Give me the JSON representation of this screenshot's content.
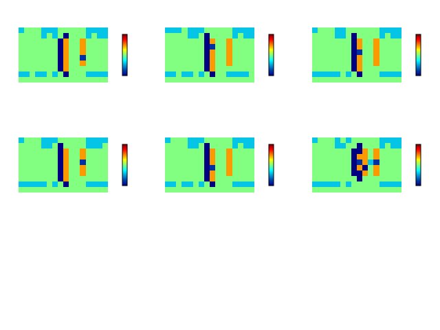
{
  "chart_data": [
    {
      "type": "heatmap",
      "color": "Jet",
      "zlim": [
        -1,
        1
      ],
      "tick_labels": false,
      "z": [
        [
          -0.4,
          0,
          0,
          0,
          -0.4,
          -0.4,
          -0.4,
          0,
          0,
          0,
          0,
          0,
          -0.4,
          -0.4,
          -0.4,
          -0.4
        ],
        [
          0,
          0,
          0,
          0,
          -0.4,
          0,
          -0.4,
          0,
          -1,
          0,
          0,
          0,
          -0.4,
          0,
          -0.4,
          -0.4
        ],
        [
          0,
          0,
          0,
          0,
          0,
          0,
          0,
          -1,
          0.45,
          0,
          0,
          0.45,
          0,
          0,
          0,
          0
        ],
        [
          0,
          0,
          0,
          0,
          0,
          0,
          0,
          -1,
          0.45,
          0,
          0,
          0.45,
          0,
          0,
          0,
          0
        ],
        [
          0,
          0,
          0,
          0,
          0,
          0,
          0,
          -1,
          0.45,
          0,
          0,
          0.45,
          0,
          0,
          0,
          0
        ],
        [
          0,
          0,
          0,
          0,
          0,
          0,
          0,
          -1,
          0.45,
          0,
          0,
          -0.8,
          0,
          0,
          0,
          0
        ],
        [
          0,
          0,
          0,
          0,
          0,
          0,
          0,
          -1,
          0.45,
          0,
          0,
          0.45,
          0,
          0,
          0,
          0
        ],
        [
          0,
          0,
          0,
          0,
          0,
          0,
          0,
          -1,
          0.45,
          0,
          0,
          0,
          0,
          0,
          0,
          0
        ],
        [
          -0.4,
          -0.4,
          0,
          -0.4,
          -0.4,
          0,
          -0.4,
          0,
          -1,
          0,
          0,
          0,
          -0.4,
          -0.4,
          -0.4,
          -0.4
        ],
        [
          0,
          0,
          0,
          0,
          0,
          0,
          0,
          0,
          0,
          0,
          0,
          0,
          0,
          0,
          0,
          0
        ]
      ]
    },
    {
      "type": "heatmap",
      "color": "Jet",
      "zlim": [
        -1,
        1
      ],
      "tick_labels": false,
      "z": [
        [
          -0.4,
          -0.4,
          -0.4,
          0,
          -0.4,
          -0.4,
          -0.4,
          0,
          0,
          0,
          0,
          0,
          -0.4,
          -0.4,
          -0.4,
          -0.4
        ],
        [
          0,
          0,
          0,
          0,
          -0.4,
          -0.4,
          0,
          -1,
          0,
          0,
          0,
          0,
          -0.4,
          0,
          -0.4,
          -0.4
        ],
        [
          0,
          0,
          0,
          0,
          0,
          0,
          0,
          -1,
          0.45,
          0,
          0,
          0.45,
          0,
          0,
          0,
          0
        ],
        [
          0,
          0,
          0,
          0,
          0,
          0,
          0,
          -1,
          -0.8,
          0,
          0,
          0.45,
          0,
          0,
          0,
          0
        ],
        [
          0,
          0,
          0,
          0,
          0,
          0,
          0,
          -1,
          0.45,
          0,
          0,
          0.45,
          0,
          0,
          0,
          0
        ],
        [
          0,
          0,
          0,
          0,
          0,
          0,
          0,
          -1,
          0.45,
          0,
          0,
          0.45,
          0,
          0,
          0,
          0
        ],
        [
          0,
          0,
          0,
          0,
          0,
          0,
          0,
          -1,
          0.45,
          0,
          0,
          0.45,
          0,
          0,
          0,
          0
        ],
        [
          0,
          0,
          0,
          0,
          0,
          0,
          0,
          -1,
          0.45,
          0,
          0,
          0,
          0,
          0,
          0,
          0
        ],
        [
          -0.4,
          -0.4,
          0,
          -0.4,
          -0.4,
          0,
          -0.4,
          0,
          -1,
          0,
          0,
          -0.4,
          -0.4,
          -0.4,
          -0.4,
          0
        ],
        [
          0,
          0,
          0,
          0,
          0,
          0,
          0,
          0,
          0,
          0,
          0,
          0,
          0,
          0,
          0,
          0
        ]
      ]
    },
    {
      "type": "heatmap",
      "color": "Jet",
      "zlim": [
        -1,
        1
      ],
      "tick_labels": false,
      "z": [
        [
          -0.4,
          0,
          0,
          0,
          -0.4,
          -0.4,
          0,
          0,
          0,
          0,
          0,
          0,
          -0.4,
          -0.4,
          -0.4,
          -0.4
        ],
        [
          0,
          0,
          0,
          0,
          -0.4,
          -0.4,
          0,
          -1,
          0,
          0,
          0,
          0,
          -0.4,
          0,
          -0.4,
          -0.4
        ],
        [
          0,
          0,
          0,
          0,
          0,
          0,
          0,
          -1,
          0.45,
          0,
          0,
          0.45,
          0,
          0,
          0,
          0
        ],
        [
          0,
          0,
          0,
          0,
          0,
          0,
          0,
          -1,
          0.45,
          0,
          0,
          0.45,
          0,
          0,
          0,
          0
        ],
        [
          0,
          0,
          0,
          0,
          0,
          0,
          0,
          -1,
          -0.8,
          0,
          0,
          0.45,
          0,
          0,
          0,
          0
        ],
        [
          0,
          0,
          0,
          0,
          0,
          0,
          0,
          -1,
          0.45,
          0,
          0,
          0.45,
          0,
          0,
          0,
          0
        ],
        [
          0,
          0,
          0,
          0,
          0,
          0,
          0,
          -1,
          0.45,
          0,
          0,
          0.45,
          0,
          0,
          0,
          0
        ],
        [
          0,
          0,
          0,
          0,
          0,
          0,
          0,
          -1,
          0.45,
          0,
          0,
          0,
          0,
          0,
          0,
          0
        ],
        [
          -0.4,
          -0.4,
          -0.4,
          -0.4,
          -0.4,
          0,
          -0.4,
          0,
          -1,
          0,
          0,
          0,
          -0.4,
          -0.4,
          -0.4,
          -0.4
        ],
        [
          0,
          0,
          0,
          0,
          0,
          0,
          0,
          0,
          0,
          0,
          0,
          0,
          0,
          0,
          0,
          0
        ]
      ]
    },
    {
      "type": "heatmap",
      "color": "Jet",
      "zlim": [
        -1,
        1
      ],
      "tick_labels": false,
      "z": [
        [
          -0.4,
          0,
          0,
          0,
          -0.4,
          -0.4,
          -0.4,
          0,
          0,
          0,
          0,
          0,
          -0.4,
          -0.4,
          -0.4,
          -0.4
        ],
        [
          0,
          0,
          0,
          0,
          -0.4,
          -0.4,
          0,
          -1,
          0,
          0,
          0,
          0,
          -0.4,
          -0.4,
          -0.4,
          0
        ],
        [
          0,
          0,
          0,
          0,
          0,
          0,
          0,
          -1,
          0.45,
          0,
          0,
          0.45,
          0,
          0,
          0,
          0
        ],
        [
          0,
          0,
          0,
          0,
          0,
          0,
          0,
          -1,
          0.45,
          0,
          0,
          0.45,
          0,
          0,
          0,
          0
        ],
        [
          0,
          0,
          0,
          0,
          0,
          0,
          0,
          -1,
          0.45,
          0,
          0,
          -0.8,
          0,
          0,
          0,
          0
        ],
        [
          0,
          0,
          0,
          0,
          0,
          0,
          0,
          -1,
          0.45,
          0,
          0,
          0.45,
          0,
          0,
          0,
          0
        ],
        [
          0,
          0,
          0,
          0,
          0,
          0,
          0,
          -1,
          0.45,
          0,
          0,
          0.45,
          0,
          0,
          0,
          0
        ],
        [
          0,
          0,
          0,
          0,
          0,
          0,
          0,
          -1,
          0.45,
          0,
          0,
          0,
          0,
          0,
          0,
          0
        ],
        [
          -0.4,
          -0.4,
          -0.4,
          -0.4,
          -0.4,
          0,
          -0.4,
          0,
          -1,
          0,
          0,
          0,
          -0.4,
          -0.4,
          -0.4,
          -0.4
        ],
        [
          0,
          0,
          0,
          0,
          0,
          0,
          0,
          0,
          0,
          0,
          0,
          0,
          0,
          0,
          0,
          0
        ]
      ]
    },
    {
      "type": "heatmap",
      "color": "Jet",
      "zlim": [
        -1,
        1
      ],
      "tick_labels": false,
      "z": [
        [
          -0.4,
          0,
          0,
          0,
          -0.4,
          -0.4,
          -0.4,
          0,
          0,
          0,
          0,
          0,
          -0.4,
          -0.4,
          -0.4,
          -0.4
        ],
        [
          0,
          0,
          0,
          0,
          -0.4,
          -0.4,
          0,
          -1,
          0,
          0,
          0,
          0,
          -0.4,
          0,
          -0.4,
          -0.4
        ],
        [
          0,
          0,
          0,
          0,
          0,
          0,
          0,
          -1,
          0.45,
          0,
          0,
          0.45,
          0,
          0,
          0,
          0
        ],
        [
          0,
          0,
          0,
          0,
          0,
          0,
          0,
          -1,
          0.45,
          0,
          0,
          0.45,
          0,
          0,
          0,
          0
        ],
        [
          0,
          0,
          0,
          0,
          0,
          0,
          0,
          -1,
          0.45,
          0,
          0,
          0.45,
          0,
          0,
          0,
          0
        ],
        [
          0,
          0,
          0,
          0,
          0,
          0,
          0,
          -1,
          -0.8,
          0,
          0,
          0.45,
          0,
          0,
          0,
          0
        ],
        [
          0,
          0,
          0,
          0,
          0,
          0,
          0,
          -1,
          0.45,
          0,
          0,
          0.45,
          0,
          0,
          0,
          0
        ],
        [
          0,
          0,
          0,
          0,
          0,
          0,
          0,
          -1,
          0.45,
          0,
          0,
          0,
          0,
          0,
          0,
          0
        ],
        [
          -0.4,
          -0.4,
          0,
          -0.4,
          -0.4,
          0,
          -0.4,
          0,
          -1,
          0,
          0,
          0,
          -0.4,
          -0.4,
          -0.4,
          -0.4
        ],
        [
          0,
          0,
          0,
          0,
          0,
          0,
          0,
          0,
          0,
          0,
          0,
          0,
          0,
          0,
          0,
          0
        ]
      ]
    },
    {
      "type": "heatmap",
      "color": "Jet",
      "zlim": [
        -1,
        1
      ],
      "tick_labels": false,
      "z": [
        [
          -0.4,
          0,
          0,
          0,
          -0.4,
          0,
          -0.4,
          0,
          0,
          0,
          0,
          0,
          -0.4,
          -0.4,
          -0.4,
          -0.4
        ],
        [
          0,
          0,
          0,
          0,
          -0.4,
          -0.4,
          0,
          0,
          -1,
          0,
          0,
          0,
          -0.4,
          0,
          -0.4,
          -0.4
        ],
        [
          0,
          0,
          0,
          0,
          0,
          0,
          0,
          -1,
          -1,
          0.45,
          0,
          0.45,
          0,
          0,
          0,
          0
        ],
        [
          0,
          0,
          0,
          0,
          0,
          0,
          0,
          -1,
          0.45,
          0.45,
          0,
          0.45,
          0,
          0,
          0,
          0
        ],
        [
          0,
          0,
          0,
          0,
          0,
          0,
          0,
          -1,
          -0.8,
          0.45,
          -0.4,
          -0.8,
          0,
          0,
          0,
          0
        ],
        [
          0,
          0,
          0,
          0,
          0,
          0,
          0,
          -1,
          0.45,
          -1,
          0,
          0.45,
          0,
          0,
          0,
          0
        ],
        [
          0,
          0,
          0,
          0,
          0,
          0,
          0,
          -1,
          -1,
          0.45,
          0,
          0.45,
          0,
          0,
          0,
          0
        ],
        [
          0,
          0,
          0,
          0,
          0,
          0,
          0,
          0,
          -1,
          0,
          0,
          0,
          0,
          0,
          0,
          0
        ],
        [
          -0.4,
          -0.4,
          -0.4,
          -0.4,
          -0.4,
          0,
          -0.4,
          0,
          0,
          0,
          0,
          0,
          -0.4,
          -0.4,
          -0.4,
          -0.4
        ],
        [
          0,
          0,
          0,
          0,
          0,
          0,
          0,
          0,
          0,
          0,
          0,
          0,
          0,
          0,
          0,
          0
        ]
      ]
    }
  ]
}
